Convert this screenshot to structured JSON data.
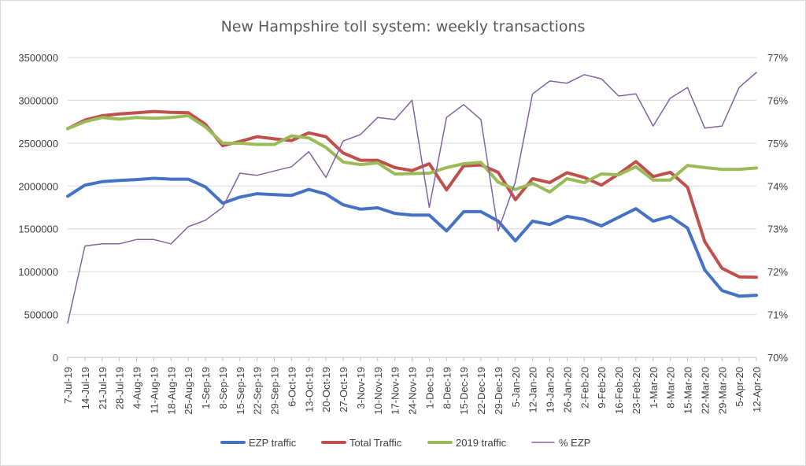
{
  "chart_data": {
    "type": "line",
    "title": "New Hampshire toll system: weekly transactions",
    "categories": [
      "7-Jul-19",
      "14-Jul-19",
      "21-Jul-19",
      "28-Jul-19",
      "4-Aug-19",
      "11-Aug-19",
      "18-Aug-19",
      "25-Aug-19",
      "1-Sep-19",
      "8-Sep-19",
      "15-Sep-19",
      "22-Sep-19",
      "29-Sep-19",
      "6-Oct-19",
      "13-Oct-19",
      "20-Oct-19",
      "27-Oct-19",
      "3-Nov-19",
      "10-Nov-19",
      "17-Nov-19",
      "24-Nov-19",
      "1-Dec-19",
      "8-Dec-19",
      "15-Dec-19",
      "22-Dec-19",
      "29-Dec-19",
      "5-Jan-20",
      "12-Jan-20",
      "19-Jan-20",
      "26-Jan-20",
      "2-Feb-20",
      "9-Feb-20",
      "16-Feb-20",
      "23-Feb-20",
      "1-Mar-20",
      "8-Mar-20",
      "15-Mar-20",
      "22-Mar-20",
      "29-Mar-20",
      "5-Apr-20",
      "12-Apr-20"
    ],
    "y_left": {
      "ylim": [
        0,
        3500000
      ],
      "ticks": [
        "0",
        "500000",
        "1000000",
        "1500000",
        "2000000",
        "2500000",
        "3000000",
        "3500000"
      ],
      "tick_values": [
        0,
        500000,
        1000000,
        1500000,
        2000000,
        2500000,
        3000000,
        3500000
      ]
    },
    "y_right": {
      "ylim": [
        70,
        77
      ],
      "ticks": [
        "70%",
        "71%",
        "72%",
        "73%",
        "74%",
        "75%",
        "76%",
        "77%"
      ],
      "tick_values": [
        70,
        71,
        72,
        73,
        74,
        75,
        76,
        77
      ]
    },
    "grid": true,
    "legend_position": "bottom",
    "series": [
      {
        "name": "EZP traffic",
        "color": "#4472c4",
        "width": 4,
        "axis": "left",
        "values": [
          1880000,
          2010000,
          2050000,
          2065000,
          2075000,
          2090000,
          2080000,
          2080000,
          1990000,
          1800000,
          1870000,
          1910000,
          1900000,
          1890000,
          1960000,
          1905000,
          1780000,
          1730000,
          1745000,
          1680000,
          1660000,
          1660000,
          1475000,
          1700000,
          1700000,
          1590000,
          1360000,
          1590000,
          1550000,
          1645000,
          1610000,
          1535000,
          1635000,
          1735000,
          1590000,
          1645000,
          1510000,
          1020000,
          780000,
          715000,
          725000
        ]
      },
      {
        "name": "Total Traffic",
        "color": "#c0504d",
        "width": 4,
        "axis": "left",
        "values": [
          2670000,
          2770000,
          2820000,
          2840000,
          2855000,
          2870000,
          2860000,
          2855000,
          2720000,
          2470000,
          2520000,
          2575000,
          2550000,
          2530000,
          2620000,
          2575000,
          2385000,
          2300000,
          2300000,
          2215000,
          2180000,
          2260000,
          1955000,
          2235000,
          2245000,
          2160000,
          1840000,
          2085000,
          2040000,
          2155000,
          2100000,
          2010000,
          2140000,
          2285000,
          2110000,
          2160000,
          1985000,
          1350000,
          1040000,
          940000,
          935000
        ]
      },
      {
        "name": "2019 traffic",
        "color": "#9bbb59",
        "width": 4,
        "axis": "left",
        "values": [
          2670000,
          2750000,
          2800000,
          2780000,
          2800000,
          2790000,
          2800000,
          2820000,
          2690000,
          2500000,
          2500000,
          2485000,
          2485000,
          2585000,
          2560000,
          2450000,
          2280000,
          2250000,
          2270000,
          2140000,
          2145000,
          2150000,
          2215000,
          2260000,
          2275000,
          2045000,
          1960000,
          2030000,
          1930000,
          2085000,
          2040000,
          2140000,
          2130000,
          2225000,
          2070000,
          2070000,
          2240000,
          2215000,
          2195000,
          2195000,
          2210000
        ]
      },
      {
        "name": "% EZP",
        "color": "#8064a2",
        "width": 1.5,
        "axis": "right",
        "values": [
          70.8,
          72.6,
          72.65,
          72.65,
          72.75,
          72.75,
          72.65,
          73.05,
          73.2,
          73.5,
          74.3,
          74.25,
          74.35,
          74.45,
          74.8,
          74.2,
          75.05,
          75.2,
          75.6,
          75.55,
          76.0,
          73.5,
          75.6,
          75.9,
          75.55,
          72.95,
          74.1,
          76.15,
          76.45,
          76.4,
          76.6,
          76.5,
          76.1,
          76.15,
          75.4,
          76.05,
          76.3,
          75.35,
          75.4,
          76.3,
          76.65
        ]
      }
    ]
  }
}
